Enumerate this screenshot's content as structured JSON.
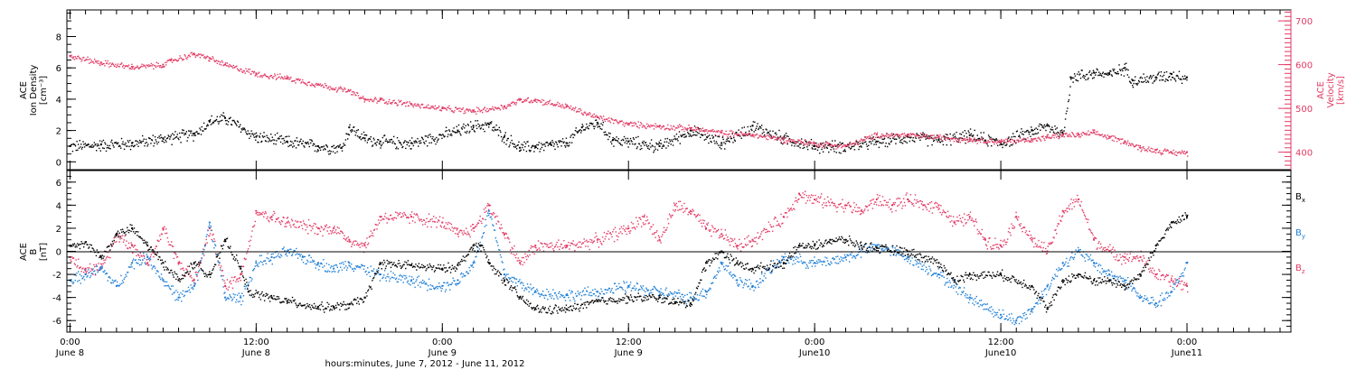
{
  "colors": {
    "black": "#000000",
    "red": "#e23a64",
    "blue": "#1f7fd6"
  },
  "top_panel": {
    "ylabel_left": [
      "ACE",
      "Ion Density",
      "[cm⁻³]"
    ],
    "ylabel_right": [
      "ACE",
      "Velocity",
      "[km/s]"
    ]
  },
  "bottom_panel": {
    "ylabel": [
      "ACE",
      "B",
      "[nT]"
    ],
    "legend": [
      {
        "label": "B",
        "sub": "x",
        "color": "#000000"
      },
      {
        "label": "B",
        "sub": "y",
        "color": "#1f7fd6"
      },
      {
        "label": "B",
        "sub": "z",
        "color": "#e23a64"
      }
    ]
  },
  "x_axis": {
    "title": "hours:minutes, June  7, 2012 - June 11, 2012",
    "ticks": [
      {
        "hours": 0,
        "time": "0:00",
        "date": "June 8"
      },
      {
        "hours": 12,
        "time": "12:00",
        "date": "June 8"
      },
      {
        "hours": 24,
        "time": "0:00",
        "date": "June 9"
      },
      {
        "hours": 36,
        "time": "12:00",
        "date": "June 9"
      },
      {
        "hours": 48,
        "time": "0:00",
        "date": "June10"
      },
      {
        "hours": 60,
        "time": "12:00",
        "date": "June10"
      },
      {
        "hours": 72,
        "time": "0:00",
        "date": "June11"
      }
    ]
  },
  "chart_data": [
    {
      "type": "scatter",
      "title": "",
      "xlabel": "hours:minutes, June  7, 2012 - June 11, 2012",
      "xlim_hours": [
        -0.2,
        78.7
      ],
      "ylim": [
        -0.5,
        9.7
      ],
      "yticks": [
        0,
        2,
        4,
        6,
        8
      ],
      "y2lim": [
        360,
        725
      ],
      "y2ticks": [
        400,
        500,
        600,
        700
      ],
      "series": [
        {
          "axis": "left",
          "ylabel": "ACE Ion Density [cm⁻³]",
          "color": "#000000",
          "x": [
            0,
            2,
            4,
            6,
            8,
            9,
            10,
            12,
            14,
            16,
            17.5,
            18,
            19,
            20,
            22,
            25,
            26,
            27,
            28,
            29,
            30,
            31,
            32,
            33,
            34,
            35,
            36,
            38,
            40,
            42,
            44,
            46,
            48,
            50,
            52,
            54,
            56,
            58,
            60,
            62,
            63,
            64,
            64.5,
            66,
            67,
            68,
            68.5,
            70,
            71,
            72
          ],
          "y": [
            1.0,
            1.1,
            1.2,
            1.5,
            1.8,
            2.6,
            2.8,
            1.6,
            1.3,
            1.0,
            0.9,
            2.2,
            1.5,
            1.3,
            1.2,
            2.0,
            2.3,
            2.4,
            1.6,
            0.9,
            1.0,
            1.1,
            1.2,
            2.2,
            2.5,
            1.4,
            1.3,
            1.0,
            2.0,
            1.2,
            2.3,
            1.5,
            1.0,
            1.0,
            1.3,
            1.6,
            1.4,
            1.7,
            1.2,
            2.0,
            2.3,
            1.8,
            5.4,
            5.7,
            5.6,
            6.0,
            5.2,
            5.4,
            5.6,
            5.4
          ]
        },
        {
          "axis": "right",
          "ylabel": "ACE Velocity [km/s]",
          "color": "#e23a64",
          "x": [
            0,
            2,
            4,
            6,
            6.5,
            8,
            9,
            10,
            12,
            14,
            16,
            18,
            19,
            20,
            22,
            24,
            26,
            28,
            29,
            30,
            32,
            34,
            36,
            38,
            40,
            42,
            44,
            46,
            48,
            50,
            52,
            54,
            56,
            58,
            60,
            62,
            63,
            64,
            65,
            66,
            67,
            68,
            69,
            70,
            71,
            72
          ],
          "y": [
            620,
            605,
            595,
            600,
            610,
            625,
            615,
            600,
            580,
            570,
            555,
            540,
            520,
            520,
            510,
            500,
            495,
            505,
            520,
            520,
            505,
            480,
            465,
            460,
            455,
            445,
            440,
            430,
            420,
            415,
            440,
            440,
            435,
            430,
            425,
            430,
            435,
            440,
            440,
            445,
            435,
            425,
            410,
            405,
            400,
            400
          ]
        }
      ]
    },
    {
      "type": "scatter",
      "title": "",
      "ylabel": "ACE B [nT]",
      "xlim_hours": [
        -0.2,
        78.7
      ],
      "ylim": [
        -7,
        7
      ],
      "yticks": [
        -6,
        -4,
        -2,
        0,
        2,
        4,
        6
      ],
      "zero_line": true,
      "series": [
        {
          "name": "Bx",
          "color": "#000000",
          "x": [
            0,
            1,
            2,
            3,
            4,
            5,
            6,
            7,
            8,
            9,
            10,
            11,
            11.5,
            13,
            14,
            16,
            17,
            18,
            19,
            20,
            22,
            24,
            25,
            26,
            26.5,
            27,
            28,
            29,
            30,
            32,
            34,
            36,
            38,
            39,
            40,
            41,
            42,
            43,
            44,
            46,
            47,
            48,
            49,
            50,
            51,
            52,
            54,
            56,
            57,
            58,
            60,
            62,
            63,
            64,
            65,
            66,
            67,
            68,
            69,
            70,
            71,
            72
          ],
          "y": [
            0.5,
            0.8,
            -0.5,
            1.5,
            2.0,
            0.5,
            -1.0,
            -2.5,
            -1.0,
            -2.0,
            1.0,
            -1.5,
            -3.5,
            -4.0,
            -4.3,
            -4.8,
            -4.8,
            -4.6,
            -4.0,
            -1.0,
            -1.2,
            -1.5,
            -1.2,
            0.5,
            0.5,
            -1.0,
            -2.5,
            -4.0,
            -5.0,
            -5.0,
            -4.3,
            -4.0,
            -4.0,
            -4.4,
            -4.5,
            -1.0,
            0.0,
            -1.0,
            -1.5,
            -1.0,
            0.5,
            0.5,
            1.0,
            1.0,
            0.5,
            0.3,
            0.0,
            -1.0,
            -2.5,
            -2.0,
            -2.0,
            -3.0,
            -5.0,
            -2.5,
            -2.0,
            -2.5,
            -2.5,
            -3.0,
            -2.0,
            0.5,
            2.5,
            3.0
          ]
        },
        {
          "name": "By",
          "color": "#1f7fd6",
          "x": [
            0,
            1,
            2,
            3,
            4,
            5,
            6,
            7,
            8,
            9,
            10,
            11,
            12,
            13,
            14,
            15,
            16,
            17,
            18,
            20,
            22,
            24,
            25,
            26,
            27,
            28,
            30,
            32,
            34,
            36,
            38,
            40,
            41,
            42,
            43,
            44,
            46,
            48,
            50,
            52,
            54,
            56,
            58,
            60,
            61,
            62,
            63,
            64,
            65,
            66,
            67,
            68,
            69,
            70,
            71,
            72
          ],
          "y": [
            -2.5,
            -2.0,
            -1.5,
            -3.0,
            -1.0,
            -0.5,
            -2.5,
            -4.0,
            -3.0,
            2.5,
            -4.0,
            -4.0,
            -1.0,
            -0.5,
            0.0,
            -0.5,
            -1.0,
            -1.5,
            -1.0,
            -2.0,
            -2.5,
            -3.0,
            -2.5,
            -1.0,
            3.5,
            -2.0,
            -3.5,
            -3.8,
            -3.5,
            -3.0,
            -3.5,
            -4.0,
            -3.5,
            -1.0,
            -2.5,
            -3.0,
            -0.5,
            -1.0,
            -0.5,
            0.5,
            -0.5,
            -2.0,
            -4.0,
            -5.5,
            -6.0,
            -5.0,
            -3.0,
            -1.0,
            0.0,
            -1.0,
            -2.0,
            -2.5,
            -4.0,
            -4.5,
            -3.5,
            -1.0
          ]
        },
        {
          "name": "Bz",
          "color": "#e23a64",
          "x": [
            0,
            1,
            2,
            3,
            4,
            5,
            6,
            7,
            8,
            9,
            10,
            11,
            12,
            13,
            14,
            16,
            17,
            18,
            19,
            20,
            22,
            24,
            25,
            26,
            27,
            28,
            29,
            30,
            32,
            34,
            36,
            37,
            38,
            39,
            40,
            41,
            42,
            43,
            44,
            46,
            47,
            48,
            50,
            51,
            52,
            53,
            54,
            55,
            56,
            57,
            58,
            59,
            60,
            61,
            62,
            63,
            64,
            65,
            66,
            67,
            68,
            69,
            70,
            71,
            72
          ],
          "y": [
            -0.5,
            -1.5,
            -1.5,
            1.5,
            0.5,
            -1.0,
            2.0,
            -1.0,
            -2.5,
            2.0,
            -3.0,
            -2.0,
            3.5,
            3.0,
            2.5,
            2.0,
            2.0,
            1.0,
            0.5,
            3.0,
            3.0,
            2.5,
            1.5,
            2.0,
            4.0,
            1.5,
            -1.0,
            0.5,
            0.5,
            1.0,
            2.0,
            3.0,
            1.0,
            4.0,
            3.5,
            2.0,
            1.5,
            0.5,
            1.0,
            3.0,
            5.0,
            4.5,
            4.0,
            3.5,
            4.5,
            4.0,
            4.5,
            4.0,
            4.0,
            2.5,
            3.0,
            1.0,
            0.5,
            3.0,
            1.0,
            0.0,
            3.5,
            4.5,
            1.0,
            0.0,
            -0.5,
            -0.5,
            -2.0,
            -2.5,
            -3.0
          ]
        }
      ]
    }
  ]
}
